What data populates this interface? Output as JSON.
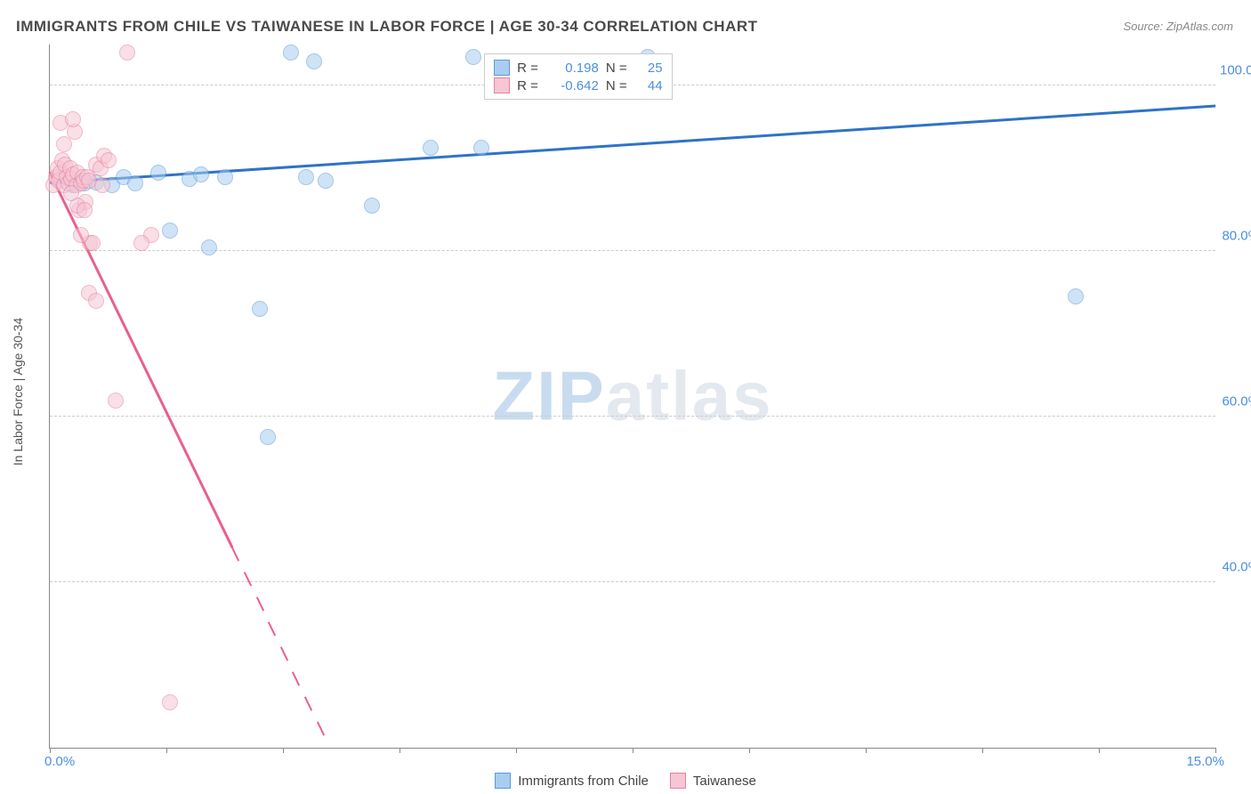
{
  "title": "IMMIGRANTS FROM CHILE VS TAIWANESE IN LABOR FORCE | AGE 30-34 CORRELATION CHART",
  "source": "Source: ZipAtlas.com",
  "yaxis_title": "In Labor Force | Age 30-34",
  "watermark": {
    "a": "ZIP",
    "b": "atlas"
  },
  "chart": {
    "type": "scatter",
    "xlim": [
      0,
      15
    ],
    "ylim": [
      20,
      105
    ],
    "xtick_step": 1.5,
    "yticks": [
      40,
      60,
      80,
      100
    ],
    "ytick_labels": [
      "40.0%",
      "60.0%",
      "80.0%",
      "100.0%"
    ],
    "xlabel_min": "0.0%",
    "xlabel_max": "15.0%",
    "marker_radius": 8,
    "marker_opacity": 0.55,
    "label_color": "#4a8fe0",
    "grid_color": "#cccccc",
    "axis_color": "#888888",
    "series": [
      {
        "name": "Immigrants from Chile",
        "color_fill": "#a9cdf0",
        "color_stroke": "#5c9ad8",
        "r": "0.198",
        "n": "25",
        "trend": {
          "x1": 0,
          "y1": 88.2,
          "x2": 15,
          "y2": 97.5,
          "width": 2.5,
          "color": "#2e73c8",
          "dashed_from_x": null
        },
        "points": [
          [
            0.3,
            88.0
          ],
          [
            0.45,
            88.2
          ],
          [
            0.6,
            88.3
          ],
          [
            0.8,
            88.0
          ],
          [
            0.95,
            89.0
          ],
          [
            1.1,
            88.2
          ],
          [
            1.4,
            89.5
          ],
          [
            1.55,
            82.5
          ],
          [
            1.8,
            88.8
          ],
          [
            1.95,
            89.3
          ],
          [
            2.05,
            80.5
          ],
          [
            2.25,
            89.0
          ],
          [
            2.7,
            73.0
          ],
          [
            2.8,
            57.5
          ],
          [
            3.1,
            104.0
          ],
          [
            3.4,
            103.0
          ],
          [
            3.3,
            89.0
          ],
          [
            3.55,
            88.5
          ],
          [
            4.15,
            85.5
          ],
          [
            4.9,
            92.5
          ],
          [
            5.45,
            103.5
          ],
          [
            5.55,
            92.5
          ],
          [
            6.95,
            103.0
          ],
          [
            7.7,
            103.5
          ],
          [
            13.2,
            74.5
          ]
        ]
      },
      {
        "name": "Taiwanese",
        "color_fill": "#f5c6d3",
        "color_stroke": "#e97fa3",
        "r": "-0.642",
        "n": "44",
        "trend": {
          "x1": 0,
          "y1": 89.5,
          "x2": 3.6,
          "y2": 20,
          "width": 2.5,
          "color": "#ea5f8e",
          "dashed_from_x": 2.35
        },
        "points": [
          [
            0.05,
            88.0
          ],
          [
            0.08,
            89.0
          ],
          [
            0.1,
            90.0
          ],
          [
            0.12,
            88.5
          ],
          [
            0.14,
            89.5
          ],
          [
            0.16,
            91.0
          ],
          [
            0.18,
            88.0
          ],
          [
            0.2,
            90.5
          ],
          [
            0.22,
            89.0
          ],
          [
            0.24,
            88.2
          ],
          [
            0.26,
            90.0
          ],
          [
            0.28,
            88.8
          ],
          [
            0.3,
            89.3
          ],
          [
            0.32,
            94.5
          ],
          [
            0.34,
            88.0
          ],
          [
            0.36,
            89.5
          ],
          [
            0.38,
            85.0
          ],
          [
            0.4,
            88.2
          ],
          [
            0.42,
            89.0
          ],
          [
            0.44,
            88.5
          ],
          [
            0.46,
            86.0
          ],
          [
            0.48,
            89.0
          ],
          [
            0.5,
            88.5
          ],
          [
            0.52,
            81.0
          ],
          [
            0.55,
            81.0
          ],
          [
            0.6,
            90.5
          ],
          [
            0.65,
            90.0
          ],
          [
            0.68,
            88.0
          ],
          [
            0.7,
            91.5
          ],
          [
            0.75,
            91.0
          ],
          [
            0.5,
            75.0
          ],
          [
            0.6,
            74.0
          ],
          [
            0.85,
            62.0
          ],
          [
            0.4,
            82.0
          ],
          [
            0.14,
            95.5
          ],
          [
            0.18,
            93.0
          ],
          [
            1.0,
            104.0
          ],
          [
            1.3,
            82.0
          ],
          [
            1.18,
            81.0
          ],
          [
            1.55,
            25.5
          ],
          [
            0.3,
            96.0
          ],
          [
            0.35,
            85.5
          ],
          [
            0.45,
            85.0
          ],
          [
            0.28,
            87.0
          ]
        ]
      }
    ]
  },
  "legend_top": {
    "r_label": "R =",
    "n_label": "N ="
  }
}
